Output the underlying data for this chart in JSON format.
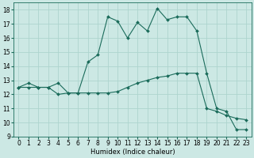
{
  "xlabel": "Humidex (Indice chaleur)",
  "bg_color": "#cce8e4",
  "grid_color": "#add4ce",
  "line_color": "#1a6b5a",
  "xlim": [
    -0.5,
    23.5
  ],
  "ylim": [
    9,
    18.5
  ],
  "yticks": [
    9,
    10,
    11,
    12,
    13,
    14,
    15,
    16,
    17,
    18
  ],
  "xticks": [
    0,
    1,
    2,
    3,
    4,
    5,
    6,
    7,
    8,
    9,
    10,
    11,
    12,
    13,
    14,
    15,
    16,
    17,
    18,
    19,
    20,
    21,
    22,
    23
  ],
  "line1_x": [
    0,
    1,
    2,
    3,
    4,
    5,
    6,
    7,
    8,
    9,
    10,
    11,
    12,
    13,
    14,
    15,
    16,
    17,
    18,
    19,
    20,
    21,
    22,
    23
  ],
  "line1_y": [
    12.5,
    12.8,
    12.5,
    12.5,
    12.0,
    12.1,
    12.1,
    14.3,
    14.8,
    17.5,
    17.2,
    16.0,
    17.1,
    16.5,
    18.1,
    17.3,
    17.5,
    17.5,
    16.5,
    13.5,
    11.0,
    10.8,
    9.5,
    9.5
  ],
  "line2_x": [
    0,
    1,
    2,
    3,
    4,
    5,
    6,
    7,
    8,
    9,
    10,
    11,
    12,
    13,
    14,
    15,
    16,
    17,
    18,
    19,
    20,
    21,
    22,
    23
  ],
  "line2_y": [
    12.5,
    12.5,
    12.5,
    12.5,
    12.8,
    12.1,
    12.1,
    12.1,
    12.1,
    12.1,
    12.2,
    12.5,
    12.8,
    13.0,
    13.2,
    13.3,
    13.5,
    13.5,
    13.5,
    11.0,
    10.8,
    10.5,
    10.3,
    10.2
  ],
  "tick_fontsize": 5.5,
  "xlabel_fontsize": 6.0,
  "marker_size": 2.0,
  "line_width": 0.8
}
